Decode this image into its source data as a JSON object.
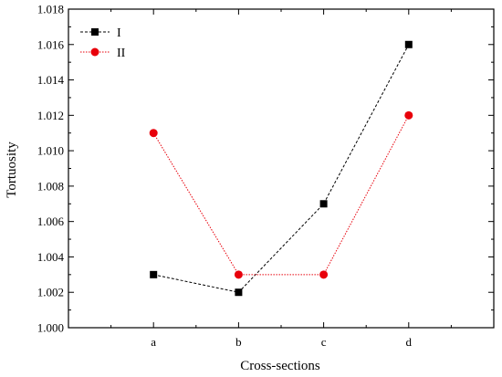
{
  "chart_data": {
    "type": "line",
    "title": "",
    "xlabel": "Cross-sections",
    "ylabel": "Tortuosity",
    "categories": [
      "a",
      "b",
      "c",
      "d"
    ],
    "ylim": [
      1.0,
      1.018
    ],
    "yticks": [
      "1.000",
      "1.002",
      "1.004",
      "1.006",
      "1.008",
      "1.010",
      "1.012",
      "1.014",
      "1.016",
      "1.018"
    ],
    "grid": false,
    "legend_position": "top-left",
    "series": [
      {
        "name": "I",
        "values": [
          1.003,
          1.002,
          1.007,
          1.016
        ],
        "color": "#000000",
        "marker": "square",
        "line_style": "dashed"
      },
      {
        "name": "II",
        "values": [
          1.011,
          1.003,
          1.003,
          1.012
        ],
        "color": "#e8000b",
        "marker": "circle",
        "line_style": "dotted"
      }
    ]
  }
}
